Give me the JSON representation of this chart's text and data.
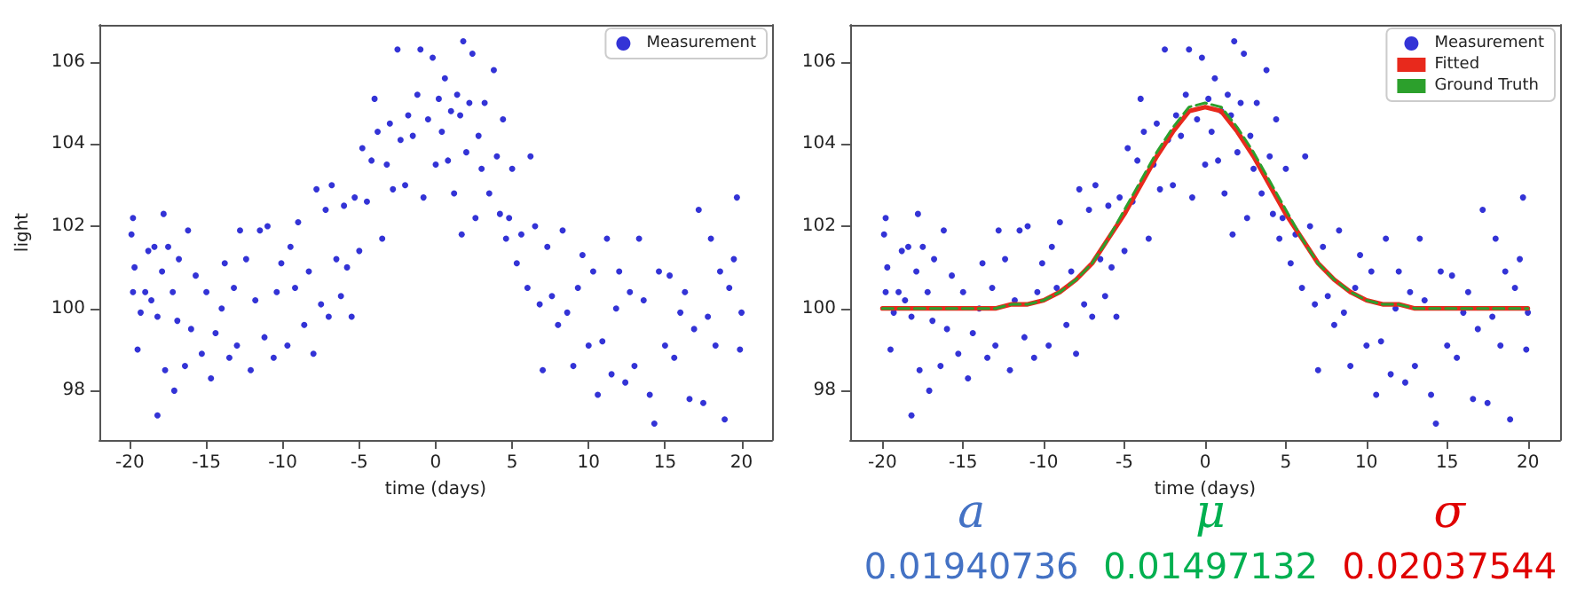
{
  "chart_data": [
    {
      "type": "scatter",
      "xlabel": "time (days)",
      "ylabel": "light",
      "xlim": [
        -22,
        22
      ],
      "ylim": [
        96.8,
        106.9
      ],
      "xticks": [
        -20,
        -15,
        -10,
        -5,
        0,
        5,
        10,
        15,
        20
      ],
      "yticks": [
        98,
        100,
        102,
        104,
        106
      ],
      "grid": false,
      "legend": "top right",
      "marker": "circle",
      "x": [
        -19.9,
        -19.8,
        -19.7,
        -19.8,
        -19.5,
        -19.3,
        -19,
        -18.8,
        -18.6,
        -18.4,
        -18.2,
        -18.2,
        -17.9,
        -17.8,
        -17.7,
        -17.5,
        -17.2,
        -17.1,
        -16.9,
        -16.8,
        -16.4,
        -16.2,
        -16,
        -15.7,
        -15.3,
        -15,
        -14.7,
        -14.4,
        -14,
        -13.8,
        -13.5,
        -13.2,
        -13,
        -12.8,
        -12.4,
        -12.1,
        -11.8,
        -11.5,
        -11.2,
        -11,
        -10.6,
        -10.4,
        -10.1,
        -9.7,
        -9.5,
        -9.2,
        -9,
        -8.6,
        -8.3,
        -8,
        -7.8,
        -7.5,
        -7.2,
        -7,
        -6.8,
        -6.5,
        -6.2,
        -6,
        -5.8,
        -5.5,
        -5.3,
        -5,
        -4.8,
        -4.5,
        -4.2,
        -4,
        -3.8,
        -3.5,
        -3.2,
        -3,
        -2.8,
        -2.5,
        -2.3,
        -2,
        -1.8,
        -1.5,
        -1.2,
        -1,
        -0.8,
        -0.5,
        -0.2,
        0,
        0.2,
        0.4,
        0.6,
        0.8,
        1,
        1.2,
        1.4,
        1.6,
        1.8,
        1.7,
        2,
        2.2,
        2.4,
        2.6,
        2.8,
        3,
        3.2,
        3.5,
        3.8,
        4,
        4.2,
        4.4,
        4.6,
        4.8,
        5,
        5.3,
        5.6,
        6,
        6.2,
        6.5,
        6.8,
        7,
        7.3,
        7.6,
        8,
        8.3,
        8.6,
        9,
        9.3,
        9.6,
        10,
        10.3,
        10.6,
        10.9,
        11.2,
        11.5,
        11.8,
        12,
        12.4,
        12.7,
        13,
        13.3,
        13.6,
        14,
        14.3,
        14.6,
        15,
        15.3,
        15.6,
        16,
        16.3,
        16.6,
        16.9,
        17.2,
        17.5,
        17.8,
        18,
        18.3,
        18.6,
        18.9,
        19.2,
        19.5,
        19.7,
        19.9,
        20
      ],
      "series": [
        {
          "name": "Measurement",
          "color": "#0000cc",
          "values": [
            101.8,
            102.2,
            101,
            100.4,
            99,
            99.9,
            100.4,
            101.4,
            100.2,
            101.5,
            99.8,
            97.4,
            100.9,
            102.3,
            98.5,
            101.5,
            100.4,
            98,
            99.7,
            101.2,
            98.6,
            101.9,
            99.5,
            100.8,
            98.9,
            100.4,
            98.3,
            99.4,
            100,
            101.1,
            98.8,
            100.5,
            99.1,
            101.9,
            101.2,
            98.5,
            100.2,
            101.9,
            99.3,
            102,
            98.8,
            100.4,
            101.1,
            99.1,
            101.5,
            100.5,
            102.1,
            99.6,
            100.9,
            98.9,
            102.9,
            100.1,
            102.4,
            99.8,
            103,
            101.2,
            100.3,
            102.5,
            101,
            99.8,
            102.7,
            101.4,
            103.9,
            102.6,
            103.6,
            105.1,
            104.3,
            101.7,
            103.5,
            104.5,
            102.9,
            106.3,
            104.1,
            103,
            104.7,
            104.2,
            105.2,
            106.3,
            102.7,
            104.6,
            106.1,
            103.5,
            105.1,
            104.3,
            105.6,
            103.6,
            104.8,
            102.8,
            105.2,
            104.7,
            106.5,
            101.8,
            103.8,
            105,
            106.2,
            102.2,
            104.2,
            103.4,
            105,
            102.8,
            105.8,
            103.7,
            102.3,
            104.6,
            101.7,
            102.2,
            103.4,
            101.1,
            101.8,
            100.5,
            103.7,
            102,
            100.1,
            98.5,
            101.5,
            100.3,
            99.6,
            101.9,
            99.9,
            98.6,
            100.5,
            101.3,
            99.1,
            100.9,
            97.9,
            99.2,
            101.7,
            98.4,
            100,
            100.9,
            98.2,
            100.4,
            98.6,
            101.7,
            100.2,
            97.9,
            97.2,
            100.9,
            99.1,
            100.8,
            98.8,
            99.9,
            100.4,
            97.8,
            99.5,
            102.4,
            97.7,
            99.8,
            101.7,
            99.1,
            100.9,
            97.3,
            100.5,
            101.2,
            102.7,
            99,
            99.9
          ]
        }
      ]
    },
    {
      "type": "scatter",
      "xlabel": "time (days)",
      "xlim": [
        -22,
        22
      ],
      "ylim": [
        96.8,
        106.9
      ],
      "xticks": [
        -20,
        -15,
        -10,
        -5,
        0,
        5,
        10,
        15,
        20
      ],
      "yticks": [
        98,
        100,
        102,
        104,
        106
      ],
      "grid": false,
      "legend": "top right",
      "marker": "circle",
      "x": [
        -19.9,
        -19.8,
        -19.7,
        -19.8,
        -19.5,
        -19.3,
        -19,
        -18.8,
        -18.6,
        -18.4,
        -18.2,
        -18.2,
        -17.9,
        -17.8,
        -17.7,
        -17.5,
        -17.2,
        -17.1,
        -16.9,
        -16.8,
        -16.4,
        -16.2,
        -16,
        -15.7,
        -15.3,
        -15,
        -14.7,
        -14.4,
        -14,
        -13.8,
        -13.5,
        -13.2,
        -13,
        -12.8,
        -12.4,
        -12.1,
        -11.8,
        -11.5,
        -11.2,
        -11,
        -10.6,
        -10.4,
        -10.1,
        -9.7,
        -9.5,
        -9.2,
        -9,
        -8.6,
        -8.3,
        -8,
        -7.8,
        -7.5,
        -7.2,
        -7,
        -6.8,
        -6.5,
        -6.2,
        -6,
        -5.8,
        -5.5,
        -5.3,
        -5,
        -4.8,
        -4.5,
        -4.2,
        -4,
        -3.8,
        -3.5,
        -3.2,
        -3,
        -2.8,
        -2.5,
        -2.3,
        -2,
        -1.8,
        -1.5,
        -1.2,
        -1,
        -0.8,
        -0.5,
        -0.2,
        0,
        0.2,
        0.4,
        0.6,
        0.8,
        1,
        1.2,
        1.4,
        1.6,
        1.8,
        1.7,
        2,
        2.2,
        2.4,
        2.6,
        2.8,
        3,
        3.2,
        3.5,
        3.8,
        4,
        4.2,
        4.4,
        4.6,
        4.8,
        5,
        5.3,
        5.6,
        6,
        6.2,
        6.5,
        6.8,
        7,
        7.3,
        7.6,
        8,
        8.3,
        8.6,
        9,
        9.3,
        9.6,
        10,
        10.3,
        10.6,
        10.9,
        11.2,
        11.5,
        11.8,
        12,
        12.4,
        12.7,
        13,
        13.3,
        13.6,
        14,
        14.3,
        14.6,
        15,
        15.3,
        15.6,
        16,
        16.3,
        16.6,
        16.9,
        17.2,
        17.5,
        17.8,
        18,
        18.3,
        18.6,
        18.9,
        19.2,
        19.5,
        19.7,
        19.9,
        20
      ],
      "series": [
        {
          "name": "Measurement",
          "color": "#0000cc",
          "values": [
            101.8,
            102.2,
            101,
            100.4,
            99,
            99.9,
            100.4,
            101.4,
            100.2,
            101.5,
            99.8,
            97.4,
            100.9,
            102.3,
            98.5,
            101.5,
            100.4,
            98,
            99.7,
            101.2,
            98.6,
            101.9,
            99.5,
            100.8,
            98.9,
            100.4,
            98.3,
            99.4,
            100,
            101.1,
            98.8,
            100.5,
            99.1,
            101.9,
            101.2,
            98.5,
            100.2,
            101.9,
            99.3,
            102,
            98.8,
            100.4,
            101.1,
            99.1,
            101.5,
            100.5,
            102.1,
            99.6,
            100.9,
            98.9,
            102.9,
            100.1,
            102.4,
            99.8,
            103,
            101.2,
            100.3,
            102.5,
            101,
            99.8,
            102.7,
            101.4,
            103.9,
            102.6,
            103.6,
            105.1,
            104.3,
            101.7,
            103.5,
            104.5,
            102.9,
            106.3,
            104.1,
            103,
            104.7,
            104.2,
            105.2,
            106.3,
            102.7,
            104.6,
            106.1,
            103.5,
            105.1,
            104.3,
            105.6,
            103.6,
            104.8,
            102.8,
            105.2,
            104.7,
            106.5,
            101.8,
            103.8,
            105,
            106.2,
            102.2,
            104.2,
            103.4,
            105,
            102.8,
            105.8,
            103.7,
            102.3,
            104.6,
            101.7,
            102.2,
            103.4,
            101.1,
            101.8,
            100.5,
            103.7,
            102,
            100.1,
            98.5,
            101.5,
            100.3,
            99.6,
            101.9,
            99.9,
            98.6,
            100.5,
            101.3,
            99.1,
            100.9,
            97.9,
            99.2,
            101.7,
            98.4,
            100,
            100.9,
            98.2,
            100.4,
            98.6,
            101.7,
            100.2,
            97.9,
            97.2,
            100.9,
            99.1,
            100.8,
            98.8,
            99.9,
            100.4,
            97.8,
            99.5,
            102.4,
            97.7,
            99.8,
            101.7,
            99.1,
            100.9,
            97.3,
            100.5,
            101.2,
            102.7,
            99,
            99.9
          ]
        },
        {
          "name": "Fitted",
          "type": "line",
          "color": "#e8291c",
          "line_style": "solid",
          "marker": "none",
          "x": [
            -20,
            -18,
            -16,
            -14,
            -13,
            -12,
            -11,
            -10,
            -9,
            -8,
            -7,
            -6,
            -5,
            -4,
            -3,
            -2,
            -1,
            0,
            1,
            2,
            3,
            4,
            5,
            6,
            7,
            8,
            9,
            10,
            11,
            12,
            13,
            14,
            16,
            18,
            20
          ],
          "values": [
            100,
            100,
            100,
            100,
            100,
            100.1,
            100.1,
            100.2,
            100.4,
            100.7,
            101.1,
            101.7,
            102.3,
            103,
            103.7,
            104.3,
            104.8,
            104.9,
            104.8,
            104.3,
            103.7,
            103,
            102.3,
            101.7,
            101.1,
            100.7,
            100.4,
            100.2,
            100.1,
            100.1,
            100,
            100,
            100,
            100,
            100
          ]
        },
        {
          "name": "Ground Truth",
          "type": "line",
          "color": "#2ca02c",
          "line_style": "dashed",
          "marker": "none",
          "x": [
            -20,
            -18,
            -16,
            -14,
            -13,
            -12,
            -11,
            -10,
            -9,
            -8,
            -7,
            -6,
            -5,
            -4,
            -3,
            -2,
            -1,
            0,
            1,
            2,
            3,
            4,
            5,
            6,
            7,
            8,
            9,
            10,
            11,
            12,
            13,
            14,
            16,
            18,
            20
          ],
          "values": [
            100,
            100,
            100,
            100,
            100,
            100.1,
            100.1,
            100.2,
            100.4,
            100.7,
            101.1,
            101.7,
            102.4,
            103.1,
            103.8,
            104.4,
            104.9,
            105,
            104.9,
            104.4,
            103.8,
            103.1,
            102.4,
            101.7,
            101.1,
            100.7,
            100.4,
            100.2,
            100.1,
            100.1,
            100,
            100,
            100,
            100,
            100
          ]
        }
      ],
      "annotations": [
        "a",
        "μ",
        "σ",
        "0.01940736",
        "0.01497132",
        "0.02037544"
      ]
    }
  ]
}
